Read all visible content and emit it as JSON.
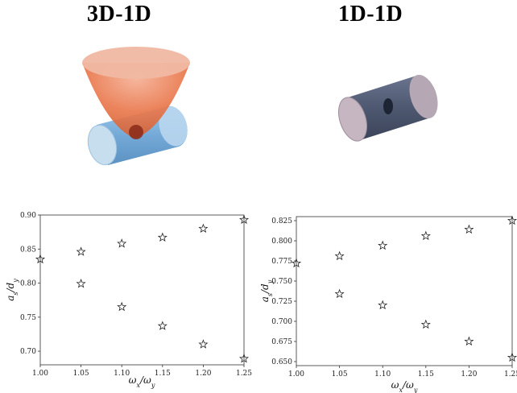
{
  "panels": {
    "left": {
      "title": "3D-1D"
    },
    "right": {
      "title": "1D-1D"
    }
  },
  "colors": {
    "paraboloid": "#e0683e",
    "left_cylinder": "#5b9ad0",
    "right_cylinder": "#4e5870",
    "marker": "#222222"
  },
  "chart_data": [
    {
      "type": "scatter",
      "marker": "star",
      "xlabel": "ω_x/ω_y",
      "ylabel": "a_s/d_y",
      "xlim": [
        1.0,
        1.25
      ],
      "ylim": [
        0.68,
        0.9
      ],
      "xticks": [
        "1.00",
        "1.05",
        "1.10",
        "1.15",
        "1.20",
        "1.25"
      ],
      "yticks": [
        "0.70",
        "0.75",
        "0.80",
        "0.85",
        "0.90"
      ],
      "points": [
        [
          1.0,
          0.835
        ],
        [
          1.05,
          0.846
        ],
        [
          1.05,
          0.799
        ],
        [
          1.1,
          0.858
        ],
        [
          1.1,
          0.765
        ],
        [
          1.15,
          0.867
        ],
        [
          1.15,
          0.737
        ],
        [
          1.2,
          0.88
        ],
        [
          1.2,
          0.71
        ],
        [
          1.25,
          0.893
        ],
        [
          1.25,
          0.689
        ]
      ]
    },
    {
      "type": "scatter",
      "marker": "star",
      "xlabel": "ω_x/ω_y",
      "ylabel": "a_s/d_y",
      "xlim": [
        1.0,
        1.25
      ],
      "ylim": [
        0.645,
        0.83
      ],
      "xticks": [
        "1.00",
        "1.05",
        "1.10",
        "1.15",
        "1.20",
        "1.25"
      ],
      "yticks": [
        "0.650",
        "0.675",
        "0.700",
        "0.725",
        "0.750",
        "0.775",
        "0.800",
        "0.825"
      ],
      "points": [
        [
          1.0,
          0.772
        ],
        [
          1.05,
          0.781
        ],
        [
          1.05,
          0.734
        ],
        [
          1.1,
          0.794
        ],
        [
          1.1,
          0.72
        ],
        [
          1.15,
          0.806
        ],
        [
          1.15,
          0.696
        ],
        [
          1.2,
          0.814
        ],
        [
          1.2,
          0.675
        ],
        [
          1.25,
          0.825
        ],
        [
          1.25,
          0.655
        ]
      ]
    }
  ]
}
